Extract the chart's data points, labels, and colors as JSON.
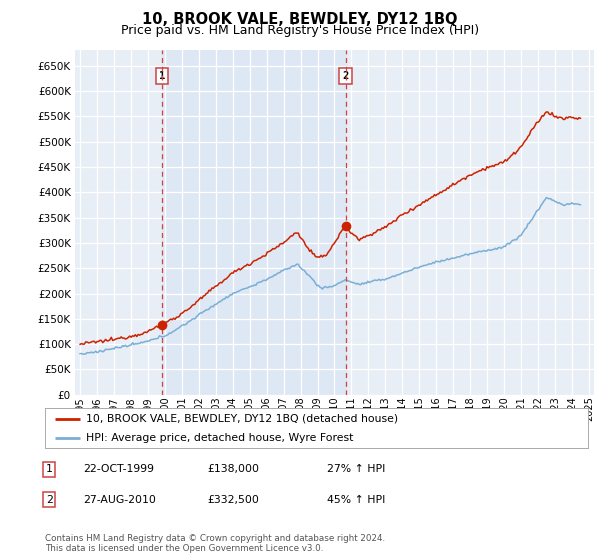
{
  "title": "10, BROOK VALE, BEWDLEY, DY12 1BQ",
  "subtitle": "Price paid vs. HM Land Registry's House Price Index (HPI)",
  "ylim": [
    0,
    680000
  ],
  "yticks": [
    0,
    50000,
    100000,
    150000,
    200000,
    250000,
    300000,
    350000,
    400000,
    450000,
    500000,
    550000,
    600000,
    650000
  ],
  "xlim_start": 1994.7,
  "xlim_end": 2025.3,
  "bg_color": "#e8eef5",
  "grid_color": "#ffffff",
  "shade_color": "#dde8f4",
  "sale1_date_num": 1999.81,
  "sale1_price": 138000,
  "sale2_date_num": 2010.65,
  "sale2_price": 332500,
  "hpi_line_color": "#7aaed6",
  "price_line_color": "#cc2200",
  "vline_color": "#cc4444",
  "legend_label1": "10, BROOK VALE, BEWDLEY, DY12 1BQ (detached house)",
  "legend_label2": "HPI: Average price, detached house, Wyre Forest",
  "table_row1": [
    "1",
    "22-OCT-1999",
    "£138,000",
    "27% ↑ HPI"
  ],
  "table_row2": [
    "2",
    "27-AUG-2010",
    "£332,500",
    "45% ↑ HPI"
  ],
  "footer": "Contains HM Land Registry data © Crown copyright and database right 2024.\nThis data is licensed under the Open Government Licence v3.0.",
  "title_fontsize": 10.5,
  "subtitle_fontsize": 9
}
